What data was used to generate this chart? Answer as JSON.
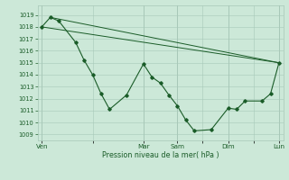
{
  "background_color": "#cce8d8",
  "plot_bg_color": "#cce8d8",
  "grid_color": "#a8c8b8",
  "line_color": "#1a5c28",
  "marker_color": "#1a5c28",
  "xlabel": "Pression niveau de la mer( hPa )",
  "ylim": [
    1008.5,
    1019.8
  ],
  "yticks": [
    1009,
    1010,
    1011,
    1012,
    1013,
    1014,
    1015,
    1016,
    1017,
    1018,
    1019
  ],
  "xtick_labels": [
    "Ven",
    "",
    "Mar",
    "Sam",
    "",
    "Dim",
    "",
    "Lun"
  ],
  "xtick_positions": [
    0,
    6,
    12,
    16,
    19,
    22,
    25,
    28
  ],
  "main_x": [
    0,
    1,
    2,
    4,
    5,
    6,
    7,
    8,
    10,
    12,
    13,
    14,
    15,
    16,
    17,
    18,
    20,
    22,
    23,
    24,
    26,
    27,
    28
  ],
  "main_y": [
    1018.0,
    1018.8,
    1018.5,
    1016.7,
    1015.2,
    1014.0,
    1012.4,
    1011.1,
    1012.3,
    1014.9,
    1013.8,
    1013.3,
    1012.3,
    1011.4,
    1010.2,
    1009.3,
    1009.4,
    1011.2,
    1011.1,
    1011.8,
    1011.8,
    1012.4,
    1015.0
  ],
  "line2_x": [
    0,
    28
  ],
  "line2_y": [
    1018.0,
    1015.0
  ],
  "line3_x": [
    1,
    28
  ],
  "line3_y": [
    1018.8,
    1015.0
  ],
  "figsize": [
    3.2,
    2.0
  ],
  "dpi": 100
}
